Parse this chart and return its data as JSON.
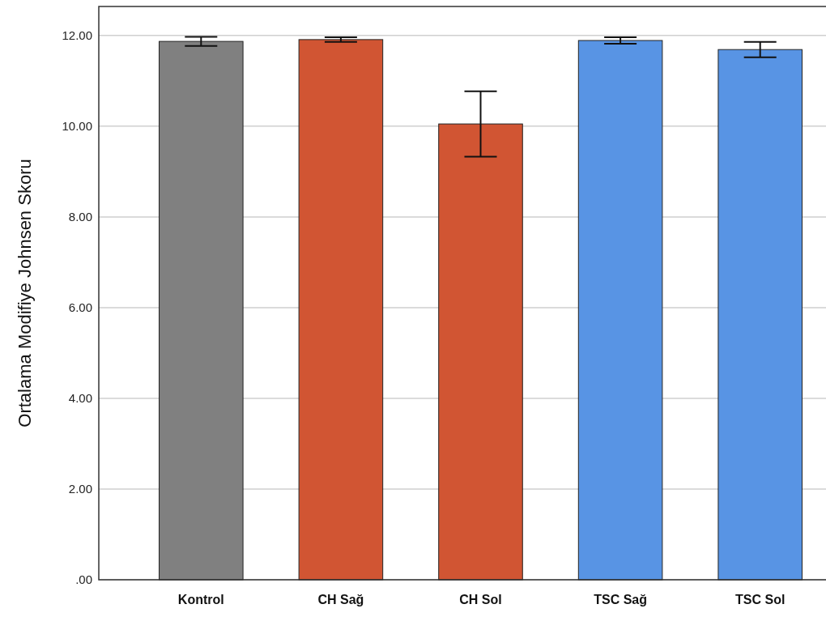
{
  "chart_data": {
    "type": "bar",
    "ylabel": "Ortalama Modifiye Johnsen Skoru",
    "categories": [
      "Kontrol",
      "CH Sağ",
      "CH Sol",
      "TSC Sağ",
      "TSC Sol"
    ],
    "values": [
      11.87,
      11.91,
      10.05,
      11.89,
      11.69
    ],
    "errors": [
      0.1,
      0.05,
      0.72,
      0.07,
      0.17
    ],
    "colors": [
      "#808080",
      "#d15533",
      "#d15533",
      "#5894e4",
      "#5894e4"
    ],
    "ylim": [
      0,
      12.64
    ],
    "yticks": [
      {
        "value": 0,
        "label": ".00"
      },
      {
        "value": 2,
        "label": "2.00"
      },
      {
        "value": 4,
        "label": "4.00"
      },
      {
        "value": 6,
        "label": "6.00"
      },
      {
        "value": 8,
        "label": "8.00"
      },
      {
        "value": 10,
        "label": "10.00"
      },
      {
        "value": 12,
        "label": "12.00"
      }
    ],
    "grid": "y"
  }
}
